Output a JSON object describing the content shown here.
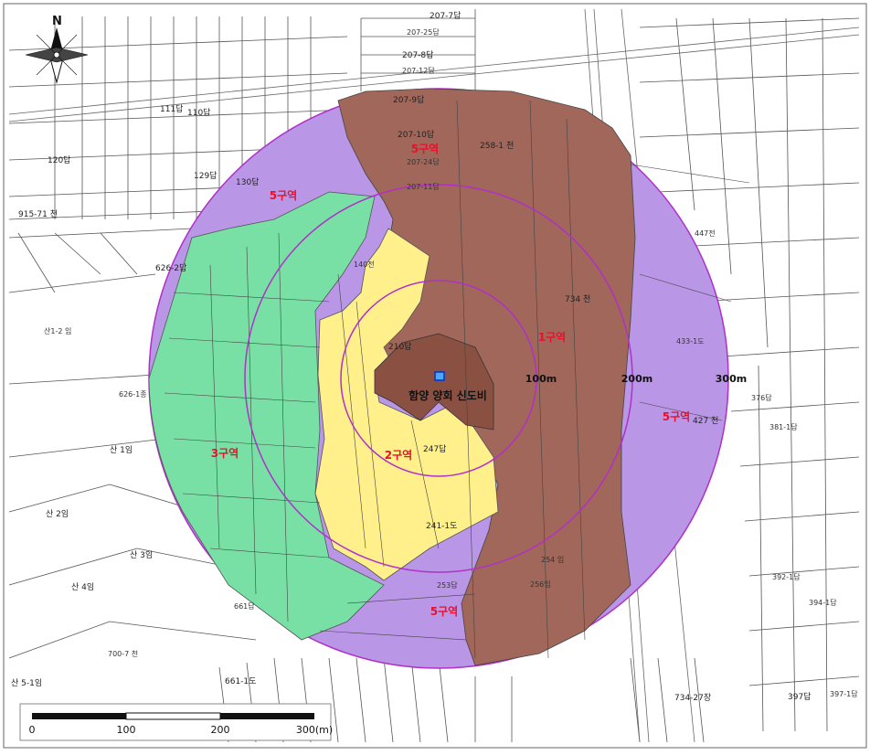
{
  "map": {
    "north_label": "N",
    "site_label": "함양 양회 신도비",
    "rings": [
      {
        "label": "100m",
        "radius_m": 100
      },
      {
        "label": "200m",
        "radius_m": 200
      },
      {
        "label": "300m",
        "radius_m": 300
      }
    ],
    "zones": [
      {
        "label": "1구역",
        "color": "#a0675a"
      },
      {
        "label": "2구역",
        "color": "#fff08c"
      },
      {
        "label": "3구역",
        "color": "#78e0a5"
      },
      {
        "label": "5구역",
        "color": "#b996e6"
      }
    ],
    "zone_label_color": "#e8112d",
    "ring_color": "#b030c8",
    "scale_bar": {
      "ticks": [
        "0",
        "100",
        "200",
        "300(m)"
      ]
    },
    "parcels": [
      "207-7답",
      "207-25답",
      "207-8답",
      "207-12답",
      "207-9답",
      "207-10답",
      "207-24답",
      "207-11답",
      "258-1 천",
      "734 천",
      "734-27장",
      "130답",
      "129답",
      "120답",
      "111답",
      "110답",
      "915-71 천",
      "626-2답",
      "626-1종",
      "140전",
      "210답",
      "247답",
      "241-1도",
      "254 임",
      "256임",
      "253답",
      "433-1도",
      "447전",
      "427 천",
      "376답",
      "381-1답",
      "397답",
      "397-1답",
      "392-1답",
      "394-1답",
      "산1-2 임",
      "산 1임",
      "산 2임",
      "산 3임",
      "산 4임",
      "산 5-1임",
      "700-7 천",
      "661답",
      "661-1도"
    ]
  }
}
